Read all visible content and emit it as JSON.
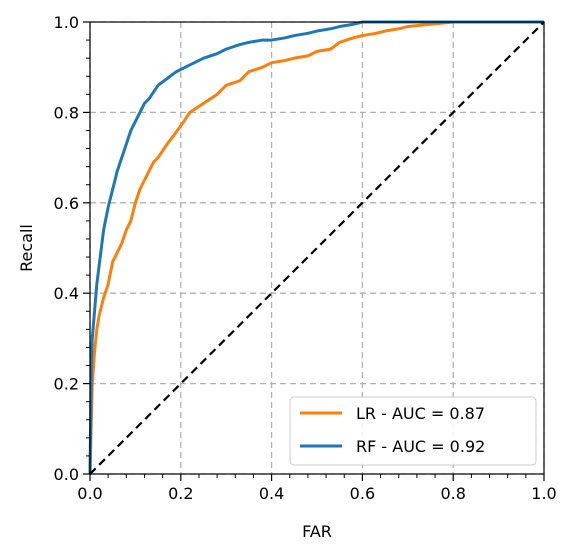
{
  "chart_data": {
    "type": "line",
    "title": "",
    "xlabel": "FAR",
    "ylabel": "Recall",
    "xlim": [
      0.0,
      1.0
    ],
    "ylim": [
      0.0,
      1.0
    ],
    "xticks": [
      "0.0",
      "0.2",
      "0.4",
      "0.6",
      "0.8",
      "1.0"
    ],
    "yticks": [
      "0.0",
      "0.2",
      "0.4",
      "0.6",
      "0.8",
      "1.0"
    ],
    "grid": true,
    "legend_position": "lower-right",
    "series": [
      {
        "name": "LR - AUC = 0.87",
        "color": "#ff7f0e",
        "x": [
          0,
          0.005,
          0.01,
          0.015,
          0.02,
          0.03,
          0.04,
          0.05,
          0.06,
          0.07,
          0.08,
          0.09,
          0.1,
          0.11,
          0.12,
          0.13,
          0.14,
          0.15,
          0.17,
          0.2,
          0.22,
          0.25,
          0.28,
          0.3,
          0.33,
          0.35,
          0.38,
          0.4,
          0.43,
          0.45,
          0.48,
          0.5,
          0.53,
          0.55,
          0.58,
          0.6,
          0.63,
          0.65,
          0.68,
          0.7,
          0.75,
          0.8,
          0.85,
          0.9,
          0.95,
          1.0
        ],
        "y": [
          0,
          0.2,
          0.27,
          0.32,
          0.35,
          0.39,
          0.42,
          0.47,
          0.49,
          0.51,
          0.54,
          0.56,
          0.6,
          0.63,
          0.65,
          0.67,
          0.69,
          0.7,
          0.73,
          0.77,
          0.8,
          0.82,
          0.84,
          0.86,
          0.87,
          0.89,
          0.9,
          0.91,
          0.915,
          0.92,
          0.925,
          0.935,
          0.94,
          0.955,
          0.965,
          0.97,
          0.975,
          0.98,
          0.985,
          0.99,
          0.995,
          1.0,
          1.0,
          1.0,
          1.0,
          1.0
        ]
      },
      {
        "name": "RF - AUC = 0.92",
        "color": "#1f77b4",
        "x": [
          0,
          0.003,
          0.005,
          0.01,
          0.015,
          0.02,
          0.025,
          0.03,
          0.04,
          0.05,
          0.06,
          0.07,
          0.08,
          0.09,
          0.1,
          0.11,
          0.12,
          0.13,
          0.14,
          0.15,
          0.17,
          0.19,
          0.21,
          0.23,
          0.25,
          0.28,
          0.3,
          0.33,
          0.35,
          0.38,
          0.4,
          0.43,
          0.45,
          0.48,
          0.5,
          0.53,
          0.55,
          0.58,
          0.6,
          0.65,
          0.7,
          0.75,
          0.8,
          0.85,
          0.9,
          0.95,
          1.0
        ],
        "y": [
          0,
          0.25,
          0.3,
          0.36,
          0.42,
          0.46,
          0.5,
          0.54,
          0.59,
          0.63,
          0.67,
          0.7,
          0.73,
          0.76,
          0.78,
          0.8,
          0.82,
          0.83,
          0.845,
          0.86,
          0.875,
          0.89,
          0.9,
          0.91,
          0.92,
          0.93,
          0.94,
          0.95,
          0.955,
          0.96,
          0.96,
          0.965,
          0.97,
          0.975,
          0.98,
          0.985,
          0.99,
          0.995,
          1.0,
          1.0,
          1.0,
          1.0,
          1.0,
          1.0,
          1.0,
          1.0,
          1.0
        ]
      }
    ],
    "reference_line": {
      "x": [
        0,
        1
      ],
      "y": [
        0,
        1
      ],
      "color": "#000000",
      "style": "dashed"
    }
  }
}
